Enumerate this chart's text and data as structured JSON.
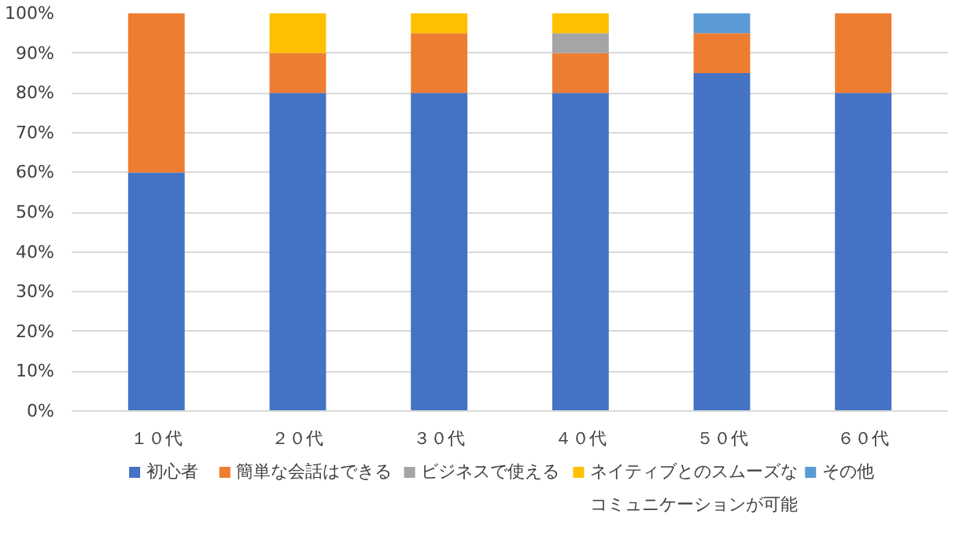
{
  "chart_data": {
    "type": "bar",
    "stacked": true,
    "categories": [
      "１０代",
      "２０代",
      "３０代",
      "４０代",
      "５０代",
      "６０代"
    ],
    "series": [
      {
        "name": "初心者",
        "color": "#4472c4",
        "values": [
          60,
          80,
          80,
          80,
          85,
          80
        ]
      },
      {
        "name": "簡単な会話はできる",
        "color": "#ed7d31",
        "values": [
          40,
          10,
          15,
          10,
          10,
          20
        ]
      },
      {
        "name": "ビジネスで使える",
        "color": "#a5a5a5",
        "values": [
          0,
          0,
          0,
          5,
          0,
          0
        ]
      },
      {
        "name": "ネイティブとのスムーズなコミュニケーションが可能",
        "color": "#ffc000",
        "values": [
          0,
          10,
          5,
          5,
          0,
          0
        ]
      },
      {
        "name": "その他",
        "color": "#5b9bd5",
        "values": [
          0,
          0,
          0,
          0,
          5,
          0
        ]
      }
    ],
    "ylim": [
      0,
      100
    ],
    "yticks": [
      {
        "value": 0,
        "label": "0%"
      },
      {
        "value": 10,
        "label": "10%"
      },
      {
        "value": 20,
        "label": "20%"
      },
      {
        "value": 30,
        "label": "30%"
      },
      {
        "value": 40,
        "label": "40%"
      },
      {
        "value": 50,
        "label": "50%"
      },
      {
        "value": 60,
        "label": "60%"
      },
      {
        "value": 70,
        "label": "70%"
      },
      {
        "value": 80,
        "label": "80%"
      },
      {
        "value": 90,
        "label": "90%"
      },
      {
        "value": 100,
        "label": "100%"
      }
    ],
    "grid": "y",
    "legend": "bottom"
  }
}
